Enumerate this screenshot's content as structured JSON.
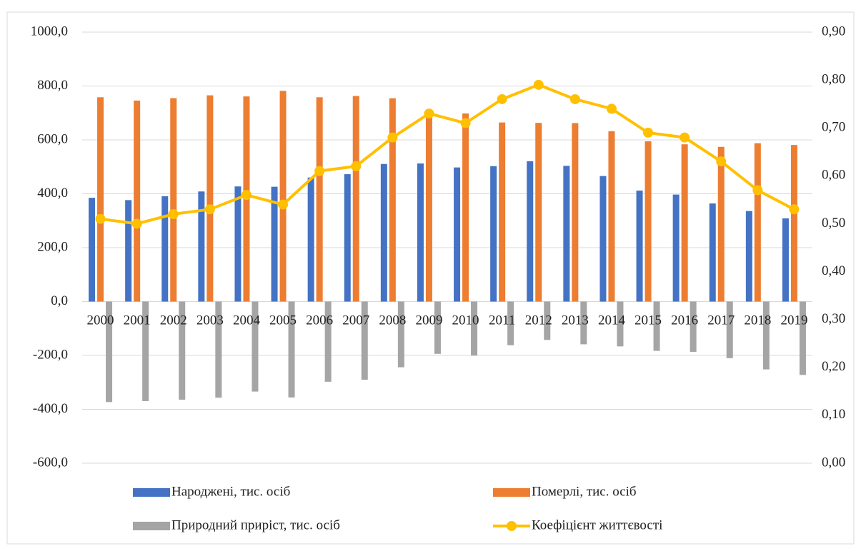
{
  "chart_data": {
    "type": "bar-line",
    "categories": [
      "2000",
      "2001",
      "2002",
      "2003",
      "2004",
      "2005",
      "2006",
      "2007",
      "2008",
      "2009",
      "2010",
      "2011",
      "2012",
      "2013",
      "2014",
      "2015",
      "2016",
      "2017",
      "2018",
      "2019"
    ],
    "series": [
      {
        "name": "Народжені, тис. осіб",
        "color": "#4472c4",
        "type": "bar",
        "values": [
          385.1,
          376.5,
          390.7,
          408.6,
          427.3,
          426.1,
          460.4,
          472.7,
          510.6,
          512.5,
          497.7,
          502.6,
          520.7,
          503.7,
          465.9,
          411.8,
          397.0,
          364.0,
          335.9,
          308.8
        ]
      },
      {
        "name": "Померлі, тис. осіб",
        "color": "#ed7d31",
        "type": "bar",
        "values": [
          758.1,
          745.9,
          754.9,
          765.4,
          761.3,
          782.0,
          758.1,
          762.9,
          754.5,
          706.7,
          698.2,
          664.6,
          663.1,
          662.4,
          632.3,
          594.8,
          583.6,
          574.1,
          587.7,
          581.1
        ]
      },
      {
        "name": "Природний приріст, тис. осіб",
        "color": "#a5a5a5",
        "type": "bar",
        "values": [
          -373.0,
          -369.4,
          -364.2,
          -356.8,
          -334.0,
          -355.9,
          -297.7,
          -290.2,
          -243.9,
          -194.2,
          -200.5,
          -162.0,
          -142.4,
          -158.7,
          -166.4,
          -183.0,
          -186.6,
          -210.1,
          -251.8,
          -272.3
        ]
      },
      {
        "name": "Коефіцієнт життєвості",
        "color": "#ffc000",
        "type": "line",
        "axis": "y2",
        "values": [
          0.51,
          0.5,
          0.52,
          0.53,
          0.56,
          0.54,
          0.61,
          0.62,
          0.68,
          0.73,
          0.71,
          0.76,
          0.79,
          0.76,
          0.74,
          0.69,
          0.68,
          0.63,
          0.57,
          0.53
        ]
      }
    ],
    "ylim": [
      -600,
      1000
    ],
    "yticks": [
      {
        "value": -600,
        "label": "-600,0"
      },
      {
        "value": -400,
        "label": "-400,0"
      },
      {
        "value": -200,
        "label": "-200,0"
      },
      {
        "value": 0,
        "label": "0,0"
      },
      {
        "value": 200,
        "label": "200,0"
      },
      {
        "value": 400,
        "label": "400,0"
      },
      {
        "value": 600,
        "label": "600,0"
      },
      {
        "value": 800,
        "label": "800,0"
      },
      {
        "value": 1000,
        "label": "1000,0"
      }
    ],
    "y2lim": [
      0,
      0.9
    ],
    "y2ticks": [
      {
        "value": 0,
        "label": "0,00"
      },
      {
        "value": 0.1,
        "label": "0,10"
      },
      {
        "value": 0.2,
        "label": "0,20"
      },
      {
        "value": 0.3,
        "label": "0,30"
      },
      {
        "value": 0.4,
        "label": "0,40"
      },
      {
        "value": 0.5,
        "label": "0,50"
      },
      {
        "value": 0.6,
        "label": "0,60"
      },
      {
        "value": 0.7,
        "label": "0,70"
      },
      {
        "value": 0.8,
        "label": "0,80"
      },
      {
        "value": 0.9,
        "label": "0,90"
      }
    ],
    "grid": true
  }
}
